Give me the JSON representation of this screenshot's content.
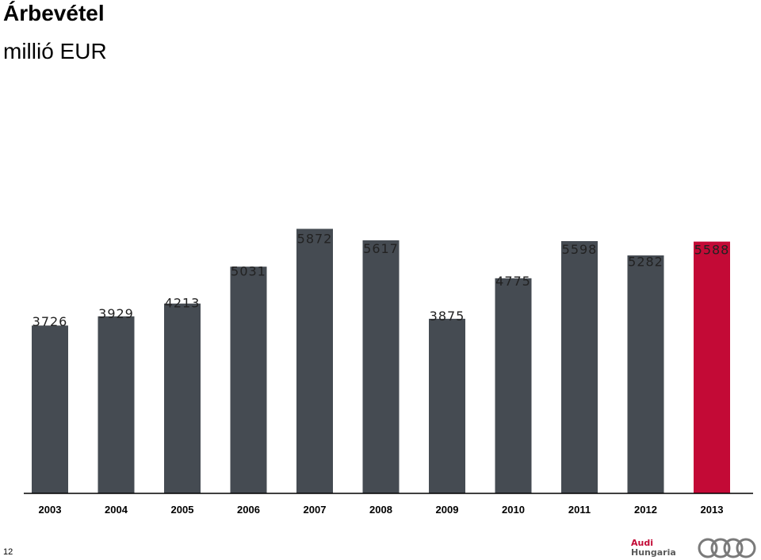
{
  "header": {
    "title": "Árbevétel",
    "subtitle": "millió EUR"
  },
  "footer": {
    "page_number": "12",
    "logo_brand": "Audi",
    "logo_sub": "Hungaria"
  },
  "colors": {
    "bar": "#454b52",
    "highlight": "#c30a36",
    "axis": "#000000"
  },
  "chart_data": {
    "type": "bar",
    "title": "Árbevétel",
    "ylabel": "millió EUR",
    "xlabel": "",
    "categories": [
      "2003",
      "2004",
      "2005",
      "2006",
      "2007",
      "2008",
      "2009",
      "2010",
      "2011",
      "2012",
      "2013"
    ],
    "values": [
      3726,
      3929,
      4213,
      5031,
      5872,
      5617,
      3875,
      4775,
      5598,
      5282,
      5588
    ],
    "highlight_index": 10,
    "grid": false,
    "legend": "none"
  }
}
